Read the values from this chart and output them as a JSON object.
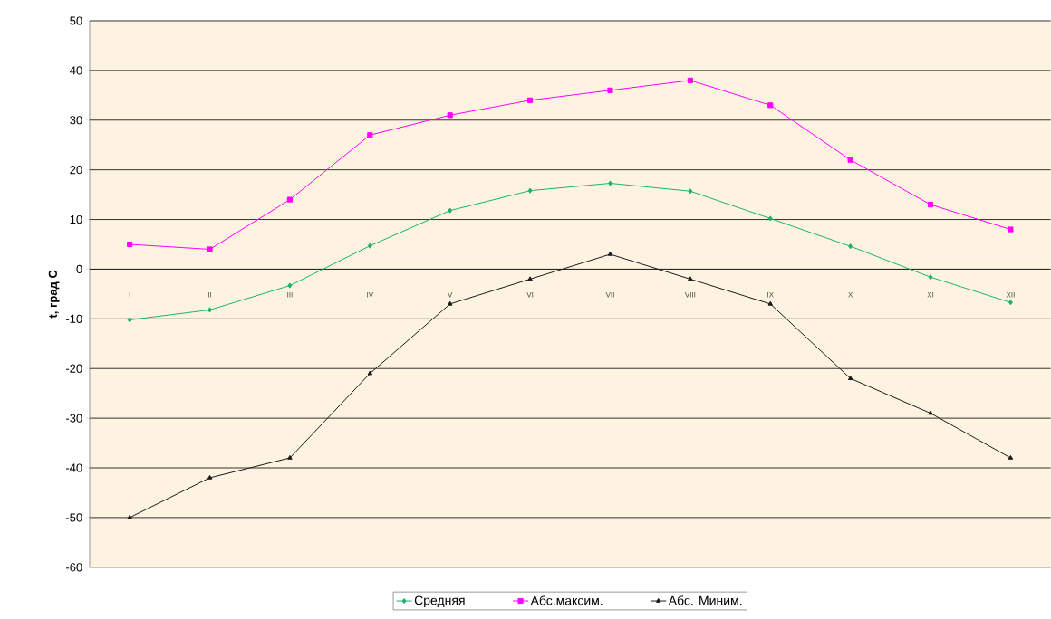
{
  "chart_data": {
    "type": "line",
    "ylabel": "t, град С",
    "categories": [
      "I",
      "II",
      "III",
      "IV",
      "V",
      "VI",
      "VII",
      "VIII",
      "IX",
      "X",
      "XI",
      "XII"
    ],
    "series": [
      {
        "name": "Средняя",
        "color": "#1db366",
        "marker": "diamond",
        "values": [
          -10.2,
          -8.2,
          -3.3,
          4.7,
          11.8,
          15.8,
          17.3,
          15.7,
          10.2,
          4.6,
          -1.6,
          -6.7
        ]
      },
      {
        "name": "Абс.максим.",
        "color": "#ff00ff",
        "marker": "square",
        "values": [
          5,
          4,
          14,
          27,
          31,
          34,
          36,
          38,
          33,
          22,
          13,
          8
        ]
      },
      {
        "name": "Абс. Миним.",
        "color": "#1a1a1a",
        "marker": "triangle",
        "values": [
          -50,
          -42,
          -38,
          -21,
          -7,
          -2,
          3,
          -2,
          -7,
          -22,
          -29,
          -38
        ]
      }
    ],
    "ylim": [
      -60,
      50
    ],
    "yticks": [
      -60,
      -50,
      -40,
      -30,
      -20,
      -10,
      0,
      10,
      20,
      30,
      40,
      50
    ],
    "grid": "y",
    "legend": "bottom"
  }
}
